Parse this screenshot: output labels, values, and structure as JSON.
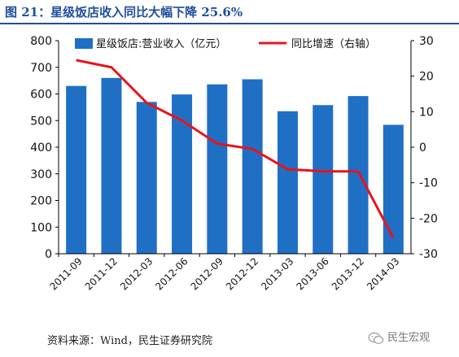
{
  "header": {
    "title": "图 21：星级饭店收入同比大幅下降 25.6%"
  },
  "footer": {
    "source": "资料来源：Wind，民生证券研究院"
  },
  "watermark": {
    "text": "民生宏观",
    "icon": "wechat-icon"
  },
  "chart_data": {
    "type": "bar",
    "categories": [
      "2011-09",
      "2011-12",
      "2012-03",
      "2012-06",
      "2012-09",
      "2012-12",
      "2013-03",
      "2013-06",
      "2013-12",
      "2014-03"
    ],
    "series": [
      {
        "name": "星级饭店:营业收入（亿元）",
        "type": "bar",
        "axis": "left",
        "values": [
          630,
          660,
          570,
          598,
          636,
          655,
          535,
          558,
          592,
          484
        ],
        "color": "#1f6fc5"
      },
      {
        "name": "同比增速（右轴）",
        "type": "line",
        "axis": "right",
        "values": [
          24.5,
          22.5,
          12.5,
          7.5,
          1.0,
          -0.5,
          -6.2,
          -6.8,
          -6.8,
          -25.6
        ],
        "color": "#e8141b"
      }
    ],
    "ylim_left": [
      0,
      800
    ],
    "yticks_left": [
      0,
      100,
      200,
      300,
      400,
      500,
      600,
      700,
      800
    ],
    "ylim_right": [
      -30,
      30
    ],
    "yticks_right": [
      -30,
      -20,
      -10,
      0,
      10,
      20,
      30
    ],
    "legend_placement": "top",
    "grid": false
  }
}
